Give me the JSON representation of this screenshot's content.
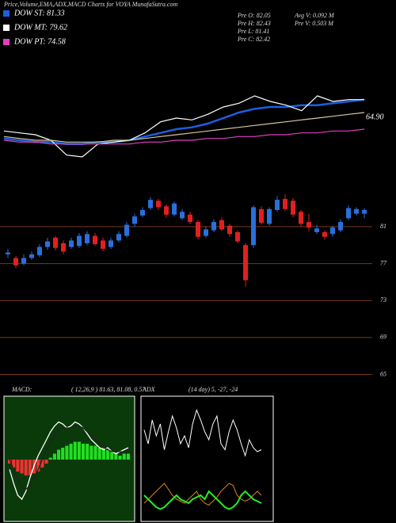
{
  "header": {
    "title": "Price,Volume,EMA,ADX,MACD Charts for VOYA MunafaSutra.com",
    "info": [
      "Pre  O: 82.05",
      "Pre  H: 82.43",
      "Pre  L: 81.41",
      "Pre  C: 82.42",
      "Avg V: 0.092  M",
      "Pre  V: 0.503 M"
    ]
  },
  "chart_data": [
    {
      "type": "line",
      "annotation": "64.90",
      "ylim": [
        50,
        95
      ],
      "series": [
        {
          "name": "DOW ST: 81.33",
          "color": "#1a5fe0",
          "values": [
            63,
            62,
            61,
            61,
            60,
            60,
            61,
            61,
            62,
            64,
            66,
            68,
            69,
            71,
            74,
            77,
            79,
            80,
            80,
            81,
            81,
            82,
            83,
            84
          ]
        },
        {
          "name": "DOW MT: 79.62",
          "color": "#ffffff",
          "values": [
            67,
            66,
            65,
            62,
            54,
            53,
            60,
            61,
            62,
            66,
            72,
            74,
            73,
            76,
            80,
            82,
            86,
            83,
            81,
            78,
            86,
            83,
            84,
            84
          ]
        },
        {
          "name": "DOW PT: 74.58",
          "color": "#e040c0",
          "values": [
            62,
            61,
            61,
            60,
            60,
            60,
            60,
            60,
            60,
            61,
            61,
            62,
            62,
            63,
            63,
            64,
            64,
            65,
            65,
            66,
            66,
            67,
            67,
            68
          ]
        },
        {
          "color": "#d8c8a0",
          "values": [
            64,
            63,
            62,
            62,
            61,
            61,
            61,
            62,
            62,
            63,
            64,
            65,
            66,
            67,
            68,
            69,
            70,
            71,
            72,
            73,
            74,
            75,
            76,
            77
          ]
        }
      ]
    },
    {
      "type": "candlestick",
      "up_color": "#2a6fdb",
      "down_color": "#e02020",
      "grid_color": "#7a3a1a",
      "ylim": [
        63.5,
        85.8
      ],
      "yticks": [
        81,
        77,
        73,
        69,
        65
      ],
      "open": [
        78.0,
        77.6,
        77.0,
        77.6,
        77.9,
        78.8,
        79.8,
        79.2,
        78.8,
        78.9,
        79.2,
        80.0,
        79.5,
        78.8,
        79.5,
        80.0,
        81.3,
        82.2,
        83.0,
        83.8,
        83.2,
        82.3,
        81.9,
        82.3,
        81.5,
        80.0,
        80.6,
        81.7,
        81.1,
        80.4,
        79.0,
        79.0,
        82.9,
        81.3,
        82.8,
        84.0,
        83.8,
        82.6,
        81.5,
        80.4,
        80.4,
        80.2,
        80.6,
        81.9,
        82.4,
        82.4
      ],
      "high": [
        78.6,
        77.8,
        78.0,
        78.3,
        79.1,
        79.8,
        80.0,
        79.5,
        79.8,
        80.3,
        80.5,
        80.3,
        79.8,
        79.8,
        80.5,
        81.5,
        82.4,
        83.1,
        84.2,
        84.0,
        83.4,
        83.7,
        82.9,
        82.6,
        81.7,
        81.0,
        81.8,
        82.0,
        81.3,
        80.6,
        79.2,
        83.3,
        83.2,
        83.1,
        84.3,
        84.5,
        84.1,
        82.8,
        82.4,
        81.2,
        80.6,
        81.1,
        81.8,
        83.3,
        83.1,
        83.0
      ],
      "low": [
        77.6,
        76.5,
        76.8,
        77.4,
        77.7,
        78.5,
        78.4,
        78.0,
        78.6,
        78.7,
        79.0,
        78.9,
        78.3,
        78.6,
        79.3,
        79.8,
        81.0,
        82.0,
        82.8,
        82.8,
        82.0,
        82.1,
        81.7,
        81.3,
        79.6,
        79.8,
        80.4,
        80.5,
        79.9,
        79.2,
        74.5,
        78.7,
        81.2,
        81.1,
        82.6,
        82.7,
        82.0,
        81.0,
        80.5,
        80.2,
        79.6,
        79.9,
        80.4,
        81.7,
        82.2,
        81.9
      ],
      "close": [
        78.2,
        76.8,
        77.6,
        78.0,
        78.8,
        79.4,
        78.7,
        78.3,
        79.5,
        80.0,
        80.2,
        79.1,
        78.6,
        79.5,
        80.2,
        81.2,
        82.1,
        82.8,
        83.9,
        83.1,
        82.3,
        83.5,
        82.6,
        81.5,
        79.9,
        80.7,
        81.5,
        80.7,
        80.2,
        79.4,
        75.2,
        83.1,
        81.4,
        82.9,
        83.9,
        82.9,
        82.3,
        81.3,
        80.9,
        80.8,
        79.9,
        80.9,
        81.5,
        83.0,
        82.9,
        82.8
      ]
    },
    {
      "type": "macd",
      "label": "MACD:",
      "params": "( 12,26,9 ) 81.63, 81.08, 0.57",
      "ylim": [
        -3,
        3
      ],
      "pos_color": "#22dd22",
      "neg_color": "#ee3333",
      "values": [
        -0.2,
        -0.4,
        -0.6,
        -0.7,
        -0.8,
        -0.8,
        -0.7,
        -0.6,
        -0.4,
        -0.2,
        0.1,
        0.3,
        0.5,
        0.6,
        0.7,
        0.8,
        0.9,
        0.9,
        0.8,
        0.8,
        0.7,
        0.7,
        0.6,
        0.6,
        0.5,
        0.4,
        0.3,
        0.2,
        0.3,
        0.3
      ],
      "series": [
        {
          "color": "#ffffff",
          "values": [
            -0.5,
            -1.2,
            -1.8,
            -2.0,
            -1.6,
            -0.9,
            -0.3,
            0.2,
            0.6,
            1.0,
            1.4,
            1.7,
            1.9,
            1.8,
            1.6,
            1.7,
            1.9,
            1.8,
            1.6,
            1.3,
            1.0,
            0.8,
            0.6,
            0.5,
            0.6,
            0.4,
            0.3,
            0.4,
            0.5,
            0.6
          ]
        },
        {
          "color": "#222222",
          "values": [
            0,
            -0.5,
            -1.0,
            -1.4,
            -1.5,
            -1.3,
            -0.9,
            -0.5,
            0,
            0.5,
            0.9,
            1.2,
            1.5,
            1.6,
            1.6,
            1.6,
            1.7,
            1.7,
            1.6,
            1.4,
            1.2,
            1.0,
            0.8,
            0.6,
            0.5,
            0.4,
            0.4,
            0.4,
            0.4,
            0.5
          ]
        }
      ]
    },
    {
      "type": "adx",
      "label": "ADX",
      "params": "(14 day) 5, -27, -24",
      "ylim": [
        0,
        60
      ],
      "series": [
        {
          "color": "#ffffff",
          "values": [
            45,
            38,
            50,
            42,
            48,
            35,
            44,
            52,
            46,
            38,
            42,
            36,
            48,
            55,
            50,
            44,
            40,
            48,
            52,
            38,
            35,
            44,
            50,
            45,
            38,
            32,
            40,
            36,
            34,
            35
          ]
        },
        {
          "color": "#e08020",
          "values": [
            8,
            10,
            12,
            14,
            16,
            18,
            15,
            12,
            10,
            9,
            8,
            10,
            12,
            14,
            10,
            8,
            7,
            9,
            11,
            14,
            16,
            18,
            17,
            12,
            10,
            9,
            10,
            12,
            14,
            12
          ]
        },
        {
          "color": "#22ee22",
          "values": [
            12,
            10,
            8,
            6,
            5,
            6,
            8,
            10,
            12,
            10,
            9,
            8,
            10,
            11,
            12,
            10,
            14,
            12,
            10,
            8,
            6,
            5,
            6,
            8,
            12,
            14,
            12,
            10,
            9,
            8
          ]
        }
      ]
    }
  ]
}
